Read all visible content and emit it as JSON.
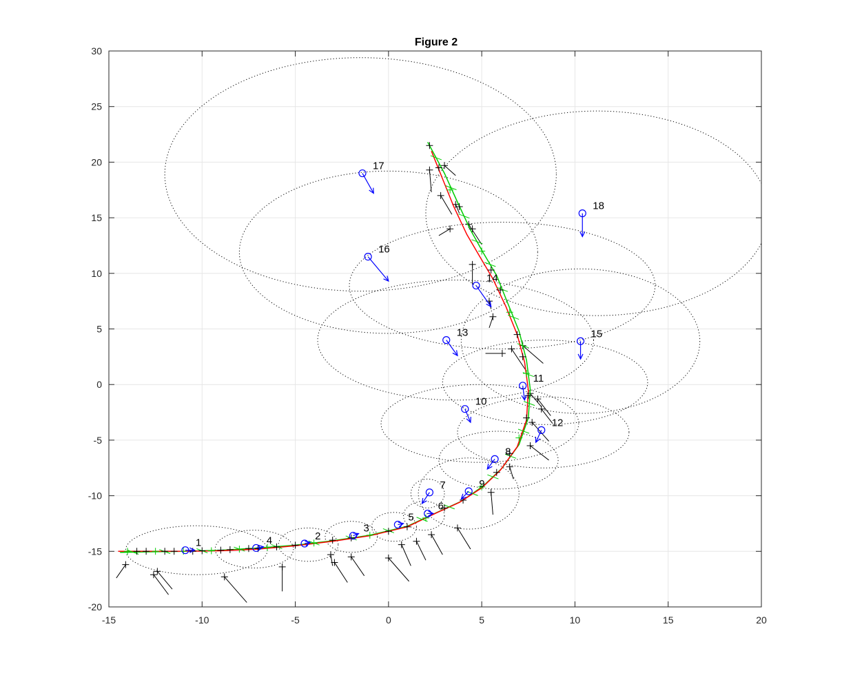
{
  "chart_data": {
    "type": "scatter",
    "title": "Figure 2",
    "xlabel": "",
    "ylabel": "",
    "xlim": [
      -15,
      20
    ],
    "ylim": [
      -20,
      30
    ],
    "xticks": [
      -15,
      -10,
      -5,
      0,
      5,
      10,
      15,
      20
    ],
    "yticks": [
      -20,
      -15,
      -10,
      -5,
      0,
      5,
      10,
      15,
      20,
      25,
      30
    ],
    "grid": true,
    "colors": {
      "true_path": "#ff0000",
      "estimate": "#00cc00",
      "landmark": "#0000ff",
      "ellipse": "#000000",
      "measurement": "#000000",
      "grid": "#e6e6e6"
    },
    "true_path": [
      [
        -14.5,
        -15
      ],
      [
        -13,
        -15
      ],
      [
        -11,
        -15
      ],
      [
        -9,
        -14.95
      ],
      [
        -7,
        -14.8
      ],
      [
        -5,
        -14.5
      ],
      [
        -3,
        -14.1
      ],
      [
        -1,
        -13.6
      ],
      [
        1,
        -12.8
      ],
      [
        2.5,
        -11.6
      ],
      [
        3.8,
        -10.6
      ],
      [
        5,
        -9.3
      ],
      [
        6,
        -7.7
      ],
      [
        6.9,
        -5.6
      ],
      [
        7.4,
        -3.2
      ],
      [
        7.5,
        -0.5
      ],
      [
        7.3,
        2
      ],
      [
        6.9,
        4.5
      ],
      [
        6.3,
        7
      ],
      [
        5.6,
        9.5
      ],
      [
        4.9,
        11.5
      ],
      [
        4.2,
        13.5
      ],
      [
        3.5,
        16
      ],
      [
        2.9,
        18.5
      ],
      [
        2.3,
        21
      ]
    ],
    "estimated_path": [
      [
        -14.4,
        -15.1
      ],
      [
        -13,
        -15.05
      ],
      [
        -11,
        -15
      ],
      [
        -9,
        -14.9
      ],
      [
        -7,
        -14.7
      ],
      [
        -5,
        -14.45
      ],
      [
        -3,
        -14.05
      ],
      [
        -1,
        -13.55
      ],
      [
        1,
        -12.75
      ],
      [
        2.6,
        -11.5
      ],
      [
        3.9,
        -10.5
      ],
      [
        5.1,
        -9.1
      ],
      [
        6.1,
        -7.5
      ],
      [
        7,
        -5.4
      ],
      [
        7.5,
        -3
      ],
      [
        7.6,
        -0.4
      ],
      [
        7.4,
        2.2
      ],
      [
        7,
        4.8
      ],
      [
        6.4,
        7.3
      ],
      [
        5.8,
        9.8
      ],
      [
        5.1,
        11.8
      ],
      [
        4.4,
        13.9
      ],
      [
        3.7,
        16.4
      ],
      [
        3,
        19
      ],
      [
        2.1,
        21.8
      ]
    ],
    "robot_markers": [
      [
        -14,
        -15
      ],
      [
        -13.5,
        -15
      ],
      [
        -13,
        -15
      ],
      [
        -12.5,
        -15
      ],
      [
        -12,
        -15
      ],
      [
        -11.5,
        -15
      ],
      [
        -11,
        -15
      ],
      [
        -10.5,
        -15
      ],
      [
        -10,
        -14.95
      ],
      [
        -9.5,
        -14.95
      ],
      [
        -9,
        -14.9
      ],
      [
        -8.5,
        -14.85
      ],
      [
        -8,
        -14.8
      ],
      [
        -7.5,
        -14.75
      ],
      [
        -7,
        -14.75
      ],
      [
        -6.5,
        -14.65
      ],
      [
        -6,
        -14.6
      ],
      [
        -5,
        -14.45
      ],
      [
        -4,
        -14.25
      ],
      [
        -3,
        -14
      ],
      [
        -2,
        -13.8
      ],
      [
        -1,
        -13.55
      ],
      [
        0,
        -13.2
      ],
      [
        1,
        -12.8
      ],
      [
        2,
        -12
      ],
      [
        3,
        -11.1
      ],
      [
        4,
        -10.4
      ],
      [
        5,
        -9.2
      ],
      [
        5.8,
        -7.9
      ],
      [
        6.5,
        -6.2
      ],
      [
        7,
        -4.8
      ],
      [
        7.4,
        -3
      ],
      [
        7.5,
        -1
      ],
      [
        7.4,
        1
      ],
      [
        7.2,
        2.5
      ],
      [
        6.9,
        4.5
      ],
      [
        6.5,
        6.5
      ],
      [
        6,
        8.5
      ],
      [
        5.5,
        10.3
      ],
      [
        5,
        12
      ],
      [
        4.5,
        14
      ],
      [
        3.8,
        16
      ],
      [
        3.3,
        17.5
      ],
      [
        2.7,
        19.5
      ],
      [
        2.2,
        21.5
      ]
    ],
    "measurements": [
      [
        -14.1,
        -16.2,
        -14.6,
        -17.4
      ],
      [
        -12.6,
        -17.1,
        -11.8,
        -18.9
      ],
      [
        -12.4,
        -16.8,
        -11.6,
        -18.4
      ],
      [
        -8.8,
        -17.3,
        -7.6,
        -19.6
      ],
      [
        -5.7,
        -16.4,
        -5.7,
        -18.6
      ],
      [
        -3.1,
        -15.3,
        -3,
        -16.3
      ],
      [
        -2.9,
        -16,
        -2.2,
        -17.8
      ],
      [
        -2,
        -15.5,
        -1.3,
        -17.2
      ],
      [
        0,
        -15.6,
        1.1,
        -17.7
      ],
      [
        0.7,
        -14.4,
        1.2,
        -16.3
      ],
      [
        1.5,
        -14.1,
        2,
        -15.8
      ],
      [
        2.3,
        -13.5,
        2.9,
        -15.3
      ],
      [
        3.7,
        -12.9,
        4.4,
        -14.8
      ],
      [
        5.5,
        -9.7,
        5.6,
        -11.7
      ],
      [
        6.5,
        -7.4,
        6.7,
        -8.5
      ],
      [
        7.6,
        -5.5,
        8.6,
        -6.8
      ],
      [
        7.7,
        -3.4,
        8.6,
        -5.1
      ],
      [
        8,
        -1.3,
        8.7,
        -2.8
      ],
      [
        8.2,
        -2.2,
        8.8,
        -3.5
      ],
      [
        7.6,
        -0.8,
        8.2,
        -2
      ],
      [
        7.2,
        3.5,
        8.3,
        1.9
      ],
      [
        6.6,
        3.2,
        7.4,
        1.2
      ],
      [
        6.1,
        2.8,
        5.2,
        2.8
      ],
      [
        5.6,
        6.1,
        5.4,
        5.1
      ],
      [
        5.4,
        7.5,
        5.5,
        6.8
      ],
      [
        4.5,
        10.8,
        4.5,
        9
      ],
      [
        3.3,
        14,
        2.7,
        13.4
      ],
      [
        3.6,
        16.2,
        3.8,
        15.4
      ],
      [
        2.2,
        19.3,
        2.3,
        17.3
      ],
      [
        2.8,
        17,
        3.4,
        15.3
      ],
      [
        3,
        19.7,
        3.6,
        18.8
      ],
      [
        4.3,
        14.4,
        5,
        12.6
      ]
    ],
    "landmarks": [
      {
        "label": "1",
        "x": -10.9,
        "y": -14.9,
        "ex": -10.3,
        "ey": -14.9,
        "erx": 3.8,
        "ery": 2.2,
        "ax": -10.4,
        "ay": -14.9
      },
      {
        "label": "4",
        "x": -7.1,
        "y": -14.7,
        "ex": -7.2,
        "ey": -14.8,
        "erx": 2.1,
        "ery": 1.7,
        "ax": -6.7,
        "ay": -14.6
      },
      {
        "label": "2",
        "x": -4.5,
        "y": -14.3,
        "ex": -4.3,
        "ey": -14.4,
        "erx": 1.6,
        "ery": 1.5,
        "ax": -4.2,
        "ay": -14.2
      },
      {
        "label": "3",
        "x": -1.9,
        "y": -13.6,
        "ex": -2,
        "ey": -13.7,
        "erx": 1.4,
        "ery": 1.4,
        "ax": -1.6,
        "ay": -13.4
      },
      {
        "label": "5",
        "x": 0.5,
        "y": -12.6,
        "ex": 0.3,
        "ey": -12.8,
        "erx": 1.2,
        "ery": 1.3,
        "ax": 0.8,
        "ay": -12.5
      },
      {
        "label": "6",
        "x": 2.1,
        "y": -11.6,
        "ex": 1.9,
        "ey": -11.8,
        "erx": 1.1,
        "ery": 1.3,
        "ax": 2.4,
        "ay": -11.6
      },
      {
        "label": "7",
        "x": 2.2,
        "y": -9.7,
        "ex": 2.1,
        "ey": -9.8,
        "erx": 0.9,
        "ery": 1.3,
        "ax": 1.8,
        "ay": -10.7
      },
      {
        "label": "9",
        "x": 4.3,
        "y": -9.6,
        "ex": 4.3,
        "ey": -9.8,
        "erx": 2.7,
        "ery": 3.2,
        "ax": 3.9,
        "ay": -10.3
      },
      {
        "label": "8",
        "x": 5.7,
        "y": -6.7,
        "ex": 5.9,
        "ey": -6.8,
        "erx": 3.2,
        "ery": 2.6,
        "ax": 5.3,
        "ay": -7.6
      },
      {
        "label": "10",
        "x": 4.1,
        "y": -2.2,
        "ex": 4.9,
        "ey": -3.5,
        "erx": 5.3,
        "ery": 3.5,
        "ax": 4.4,
        "ay": -3.4
      },
      {
        "label": "11",
        "x": 7.2,
        "y": -0.1,
        "ex": 8.4,
        "ey": 0.2,
        "erx": 5.5,
        "ery": 3.8,
        "ax": 7.3,
        "ay": -1.4
      },
      {
        "label": "12",
        "x": 8.2,
        "y": -4.1,
        "ex": 8.3,
        "ey": -4.3,
        "erx": 4.6,
        "ery": 3.2,
        "ax": 7.9,
        "ay": -5.2
      },
      {
        "label": "13",
        "x": 3.1,
        "y": 4,
        "ex": 3.6,
        "ey": 4,
        "erx": 7.4,
        "ery": 5.4,
        "ax": 3.7,
        "ay": 2.6
      },
      {
        "label": "14",
        "x": 4.7,
        "y": 8.9,
        "ex": 6.1,
        "ey": 8.9,
        "erx": 8.2,
        "ery": 5.7,
        "ax": 5.5,
        "ay": 7
      },
      {
        "label": "15",
        "x": 10.3,
        "y": 3.9,
        "ex": 10.3,
        "ey": 3.9,
        "erx": 6.4,
        "ery": 6.5,
        "ax": 10.3,
        "ay": 2.3
      },
      {
        "label": "16",
        "x": -1.1,
        "y": 11.5,
        "ex": 0,
        "ey": 11.9,
        "erx": 8,
        "ery": 7.3,
        "ax": 0,
        "ay": 9.3
      },
      {
        "label": "17",
        "x": -1.4,
        "y": 19,
        "ex": -1.5,
        "ey": 18.9,
        "erx": 10.5,
        "ery": 10.5,
        "ax": -0.8,
        "ay": 17.2
      },
      {
        "label": "18",
        "x": 10.4,
        "y": 15.4,
        "ex": 11.2,
        "ey": 15.4,
        "erx": 9.2,
        "ery": 9.2,
        "ax": 10.4,
        "ay": 13.3
      }
    ]
  }
}
